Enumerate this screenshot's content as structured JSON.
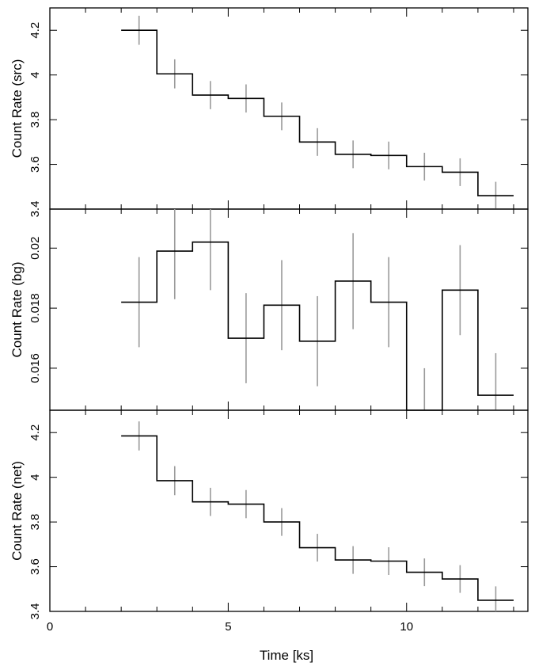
{
  "chart_data": [
    {
      "type": "line",
      "panel": "src",
      "ylabel": "Count Rate (src)",
      "xlabel": "",
      "ylim": [
        3.4,
        4.3
      ],
      "yticks": [
        3.4,
        3.6,
        3.8,
        4.0,
        4.2
      ],
      "ytick_labels": [
        "3.4",
        "3.6",
        "3.8",
        "4",
        "4.2"
      ],
      "x": [
        2.5,
        3.5,
        4.5,
        5.5,
        6.5,
        7.5,
        8.5,
        9.5,
        10.5,
        11.5,
        12.5
      ],
      "y": [
        4.2,
        4.005,
        3.91,
        3.895,
        3.815,
        3.7,
        3.645,
        3.64,
        3.59,
        3.565,
        3.46
      ],
      "yerr": [
        0.065,
        0.065,
        0.063,
        0.063,
        0.062,
        0.062,
        0.062,
        0.062,
        0.062,
        0.062,
        0.062
      ],
      "xerr": 0.5
    },
    {
      "type": "line",
      "panel": "bg",
      "ylabel": "Count Rate (bg)",
      "xlabel": "",
      "ylim": [
        0.0146,
        0.0213
      ],
      "yticks": [
        0.016,
        0.018,
        0.02
      ],
      "ytick_labels": [
        "0.016",
        "0.018",
        "0.02"
      ],
      "x": [
        2.5,
        3.5,
        4.5,
        5.5,
        6.5,
        7.5,
        8.5,
        9.5,
        10.5,
        11.5,
        12.5
      ],
      "y": [
        0.0182,
        0.0199,
        0.0202,
        0.017,
        0.0181,
        0.0169,
        0.0189,
        0.0182,
        0.0146,
        0.0186,
        0.0151
      ],
      "yerr": [
        0.0015,
        0.0016,
        0.0016,
        0.0015,
        0.0015,
        0.0015,
        0.0016,
        0.0015,
        0.0014,
        0.0015,
        0.0014
      ],
      "xerr": 0.5
    },
    {
      "type": "line",
      "panel": "net",
      "ylabel": "Count Rate (net)",
      "xlabel": "Time [ks]",
      "ylim": [
        3.4,
        4.3
      ],
      "yticks": [
        3.4,
        3.6,
        3.8,
        4.0,
        4.2
      ],
      "ytick_labels": [
        "3.4",
        "3.6",
        "3.8",
        "4",
        "4.2"
      ],
      "xlim": [
        0,
        13.4
      ],
      "xticks": [
        0,
        5,
        10
      ],
      "xtick_labels": [
        "0",
        "5",
        "10"
      ],
      "x": [
        2.5,
        3.5,
        4.5,
        5.5,
        6.5,
        7.5,
        8.5,
        9.5,
        10.5,
        11.5,
        12.5
      ],
      "y": [
        4.185,
        3.985,
        3.89,
        3.88,
        3.8,
        3.685,
        3.63,
        3.625,
        3.575,
        3.545,
        3.45
      ],
      "yerr": [
        0.065,
        0.065,
        0.063,
        0.063,
        0.062,
        0.062,
        0.062,
        0.062,
        0.062,
        0.062,
        0.062
      ],
      "xerr": 0.5
    }
  ],
  "colors": {
    "step": "#000000",
    "errorbar": "#9a9a9a",
    "frame": "#000000"
  }
}
